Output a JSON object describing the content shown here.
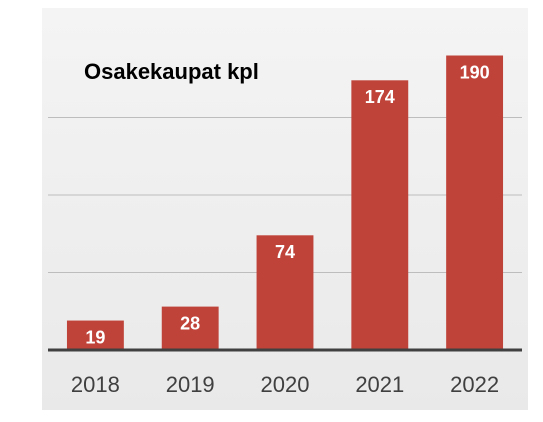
{
  "chart_data": {
    "type": "bar",
    "title": "Osakekaupat kpl",
    "categories": [
      "2018",
      "2019",
      "2020",
      "2021",
      "2022"
    ],
    "values": [
      19,
      28,
      74,
      174,
      190
    ],
    "color": "#c0433a",
    "ylim": [
      0,
      200
    ],
    "yticks": [
      50,
      100,
      150
    ],
    "grid": true
  }
}
